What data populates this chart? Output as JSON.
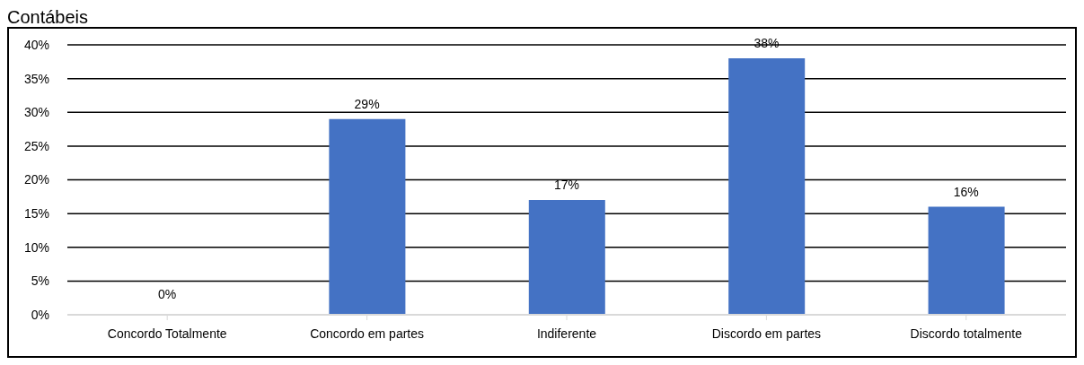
{
  "chart_data": {
    "type": "bar",
    "title": "Contábeis",
    "categories": [
      "Concordo Totalmente",
      "Concordo em partes",
      "Indiferente",
      "Discordo em partes",
      "Discordo totalmente"
    ],
    "values": [
      0,
      29,
      17,
      38,
      16
    ],
    "value_labels": [
      "0%",
      "29%",
      "17%",
      "38%",
      "16%"
    ],
    "color": "#4472c4",
    "ylim": [
      0,
      40
    ],
    "yticks": [
      {
        "value": 0,
        "label": "0%"
      },
      {
        "value": 5,
        "label": "5%"
      },
      {
        "value": 10,
        "label": "10%"
      },
      {
        "value": 15,
        "label": "15%"
      },
      {
        "value": 20,
        "label": "20%"
      },
      {
        "value": 25,
        "label": "25%"
      },
      {
        "value": 30,
        "label": "30%"
      },
      {
        "value": 35,
        "label": "35%"
      },
      {
        "value": 40,
        "label": "40%"
      }
    ],
    "grid": "y",
    "legend": false
  }
}
